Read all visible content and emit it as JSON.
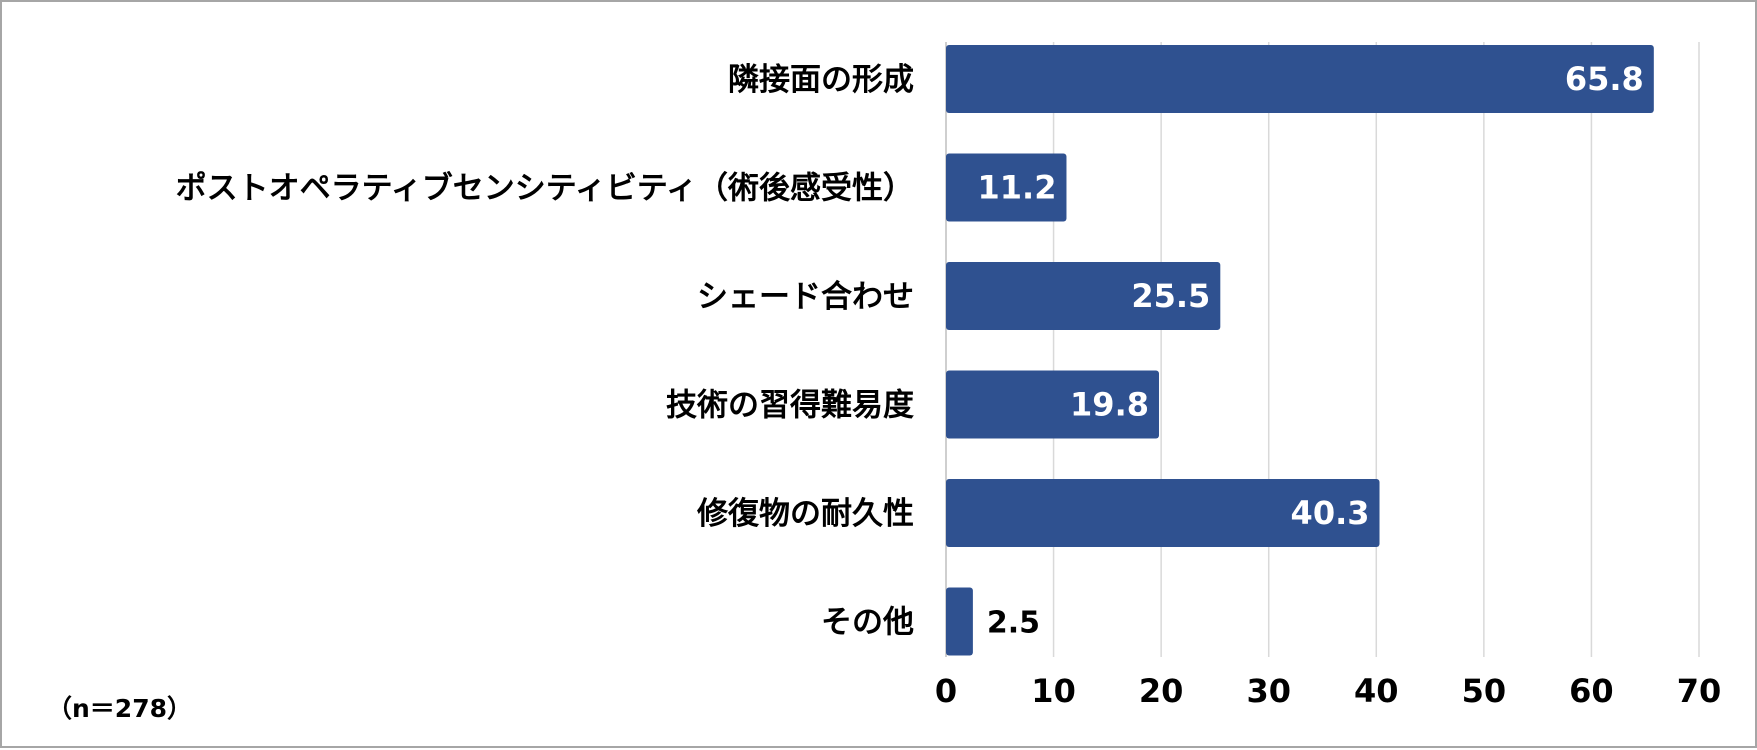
{
  "chart_data": {
    "type": "bar",
    "orientation": "horizontal",
    "categories": [
      "隣接面の形成",
      "ポストオペラティブセンシティビティ（術後感受性）",
      "シェード合わせ",
      "技術の習得難易度",
      "修復物の耐久性",
      "その他"
    ],
    "values": [
      65.8,
      11.2,
      25.5,
      19.8,
      40.3,
      2.5
    ],
    "value_labels": [
      "65.8",
      "11.2",
      "25.5",
      "19.8",
      "40.3",
      "2.5"
    ],
    "xlim": [
      0,
      70
    ],
    "xticks": [
      0,
      10,
      20,
      30,
      40,
      50,
      60,
      70
    ],
    "title": "",
    "xlabel": "",
    "ylabel": "",
    "grid": "vertical",
    "legend": "none",
    "bar_color": "#2f5190",
    "grid_color": "#d9d9d9",
    "note": "（n＝278）"
  }
}
